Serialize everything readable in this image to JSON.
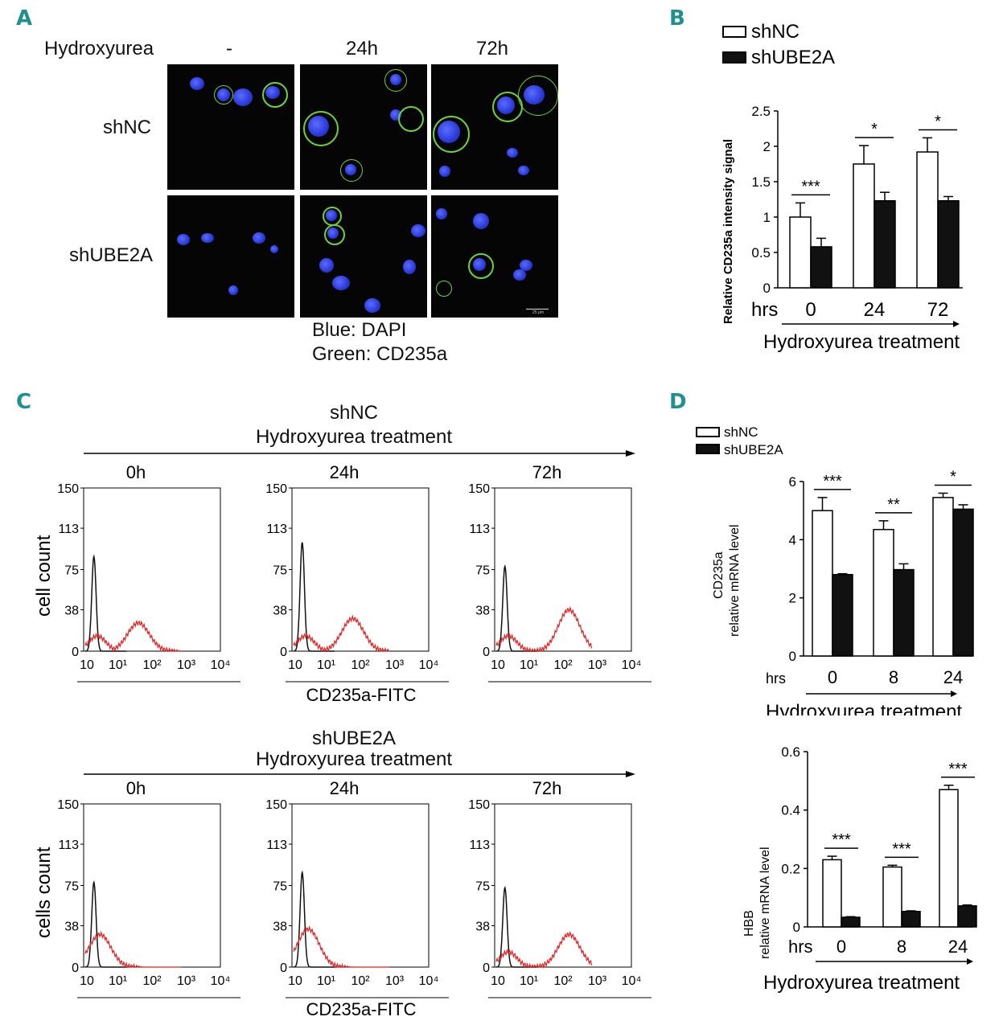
{
  "panels": {
    "a": "A",
    "b": "B",
    "c": "C",
    "d": "D"
  },
  "panelA": {
    "row_label": "Hydroxyurea",
    "columns": [
      "-",
      "24h",
      "72h"
    ],
    "rows": [
      "shNC",
      "shUBE2A"
    ],
    "legend": [
      "Blue: DAPI",
      "Green: CD235a"
    ],
    "scale_bar": "25 μm"
  },
  "panelC": {
    "groups": [
      {
        "title": "shNC",
        "subtitle": "Hydroxyurea treatment",
        "ylabel": "cell count"
      },
      {
        "title": "shUBE2A",
        "subtitle": "Hydroxyurea treatment",
        "ylabel": "cells count"
      }
    ],
    "timepoints": [
      "0h",
      "24h",
      "72h"
    ],
    "xlabel": "CD235a-FITC"
  },
  "chart_data": [
    {
      "panel": "B",
      "type": "bar",
      "categories": [
        "0",
        "24",
        "72"
      ],
      "series": [
        {
          "name": "shNC",
          "values": [
            1.0,
            1.75,
            1.92
          ],
          "errors": [
            0.2,
            0.26,
            0.2
          ]
        },
        {
          "name": "shUBE2A",
          "values": [
            0.58,
            1.23,
            1.23
          ],
          "errors": [
            0.12,
            0.12,
            0.06
          ]
        }
      ],
      "significance": [
        "***",
        "*",
        "*"
      ],
      "ylabel": "Relative CD235a intensity signal",
      "xprefix": "hrs",
      "xlabel": "Hydroxyurea treatment",
      "ylim": [
        0,
        2.5
      ],
      "yticks": [
        "0",
        "0.5",
        "1",
        "1.5",
        "2",
        "2.5"
      ]
    },
    {
      "panel": "D-top",
      "type": "bar",
      "categories": [
        "0",
        "8",
        "24"
      ],
      "series": [
        {
          "name": "shNC",
          "values": [
            5.0,
            4.35,
            5.45
          ],
          "errors": [
            0.45,
            0.3,
            0.15
          ]
        },
        {
          "name": "shUBE2A",
          "values": [
            2.8,
            2.97,
            5.05
          ],
          "errors": [
            0.03,
            0.2,
            0.15
          ]
        }
      ],
      "significance": [
        "***",
        "**",
        "*"
      ],
      "ylabel": [
        "CD235a",
        "relative mRNA level"
      ],
      "xprefix": "hrs",
      "xlabel": "Hydroxyurea treatment",
      "ylim": [
        0,
        6
      ],
      "yticks": [
        "0",
        "2",
        "4",
        "6"
      ]
    },
    {
      "panel": "D-bottom",
      "type": "bar",
      "categories": [
        "0",
        "8",
        "24"
      ],
      "series": [
        {
          "name": "shNC",
          "values": [
            0.23,
            0.205,
            0.47
          ],
          "errors": [
            0.012,
            0.006,
            0.015
          ]
        },
        {
          "name": "shUBE2A",
          "values": [
            0.033,
            0.053,
            0.072
          ],
          "errors": [
            0.002,
            0.002,
            0.003
          ]
        }
      ],
      "significance": [
        "***",
        "***",
        "***"
      ],
      "ylabel": [
        "HBB",
        "relative mRNA level"
      ],
      "xprefix": "hrs",
      "xlabel": "Hydroxyurea treatment",
      "ylim": [
        0,
        0.6
      ],
      "yticks": [
        "0",
        "0.2",
        "0.4",
        "0.6"
      ]
    },
    {
      "panel": "C-histograms",
      "type": "line",
      "x_scale": "log",
      "xticks": [
        "10",
        "10¹",
        "10²",
        "10³",
        "10⁴"
      ],
      "yticks": [
        "0",
        "38",
        "75",
        "113",
        "150"
      ],
      "ylim": [
        0,
        150
      ],
      "series_colors": {
        "control": "#111111",
        "stained": "#e02020"
      },
      "histograms": [
        {
          "group": "shNC",
          "time": "0h",
          "control_peak": 87,
          "stained_peak": 26,
          "stained_mode": 40
        },
        {
          "group": "shNC",
          "time": "24h",
          "control_peak": 100,
          "stained_peak": 30,
          "stained_mode": 60
        },
        {
          "group": "shNC",
          "time": "72h",
          "control_peak": 78,
          "stained_peak": 38,
          "stained_mode": 150
        },
        {
          "group": "shUBE2A",
          "time": "0h",
          "control_peak": 78,
          "stained_peak": 30,
          "stained_mode": 3
        },
        {
          "group": "shUBE2A",
          "time": "24h",
          "control_peak": 87,
          "stained_peak": 35,
          "stained_mode": 3
        },
        {
          "group": "shUBE2A",
          "time": "72h",
          "control_peak": 73,
          "stained_peak": 30,
          "stained_mode": 150
        }
      ]
    }
  ]
}
